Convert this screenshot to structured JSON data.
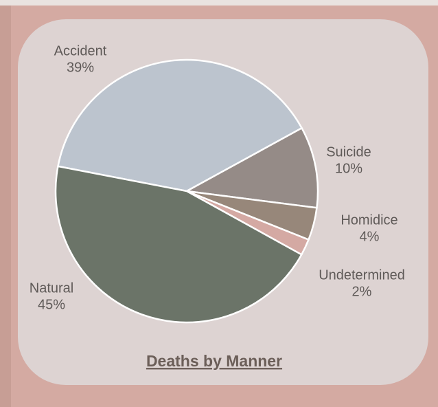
{
  "chart_data": {
    "type": "pie",
    "title": "Deaths by Manner",
    "categories": [
      "Accident",
      "Suicide",
      "Homidice",
      "Undetermined",
      "Natural"
    ],
    "values": [
      39,
      10,
      4,
      2,
      45
    ],
    "value_labels": [
      "39%",
      "10%",
      "4%",
      "2%",
      "45%"
    ],
    "colors": [
      "#bcc4ce",
      "#958b87",
      "#97877a",
      "#d4a9a3",
      "#6b7468"
    ]
  }
}
